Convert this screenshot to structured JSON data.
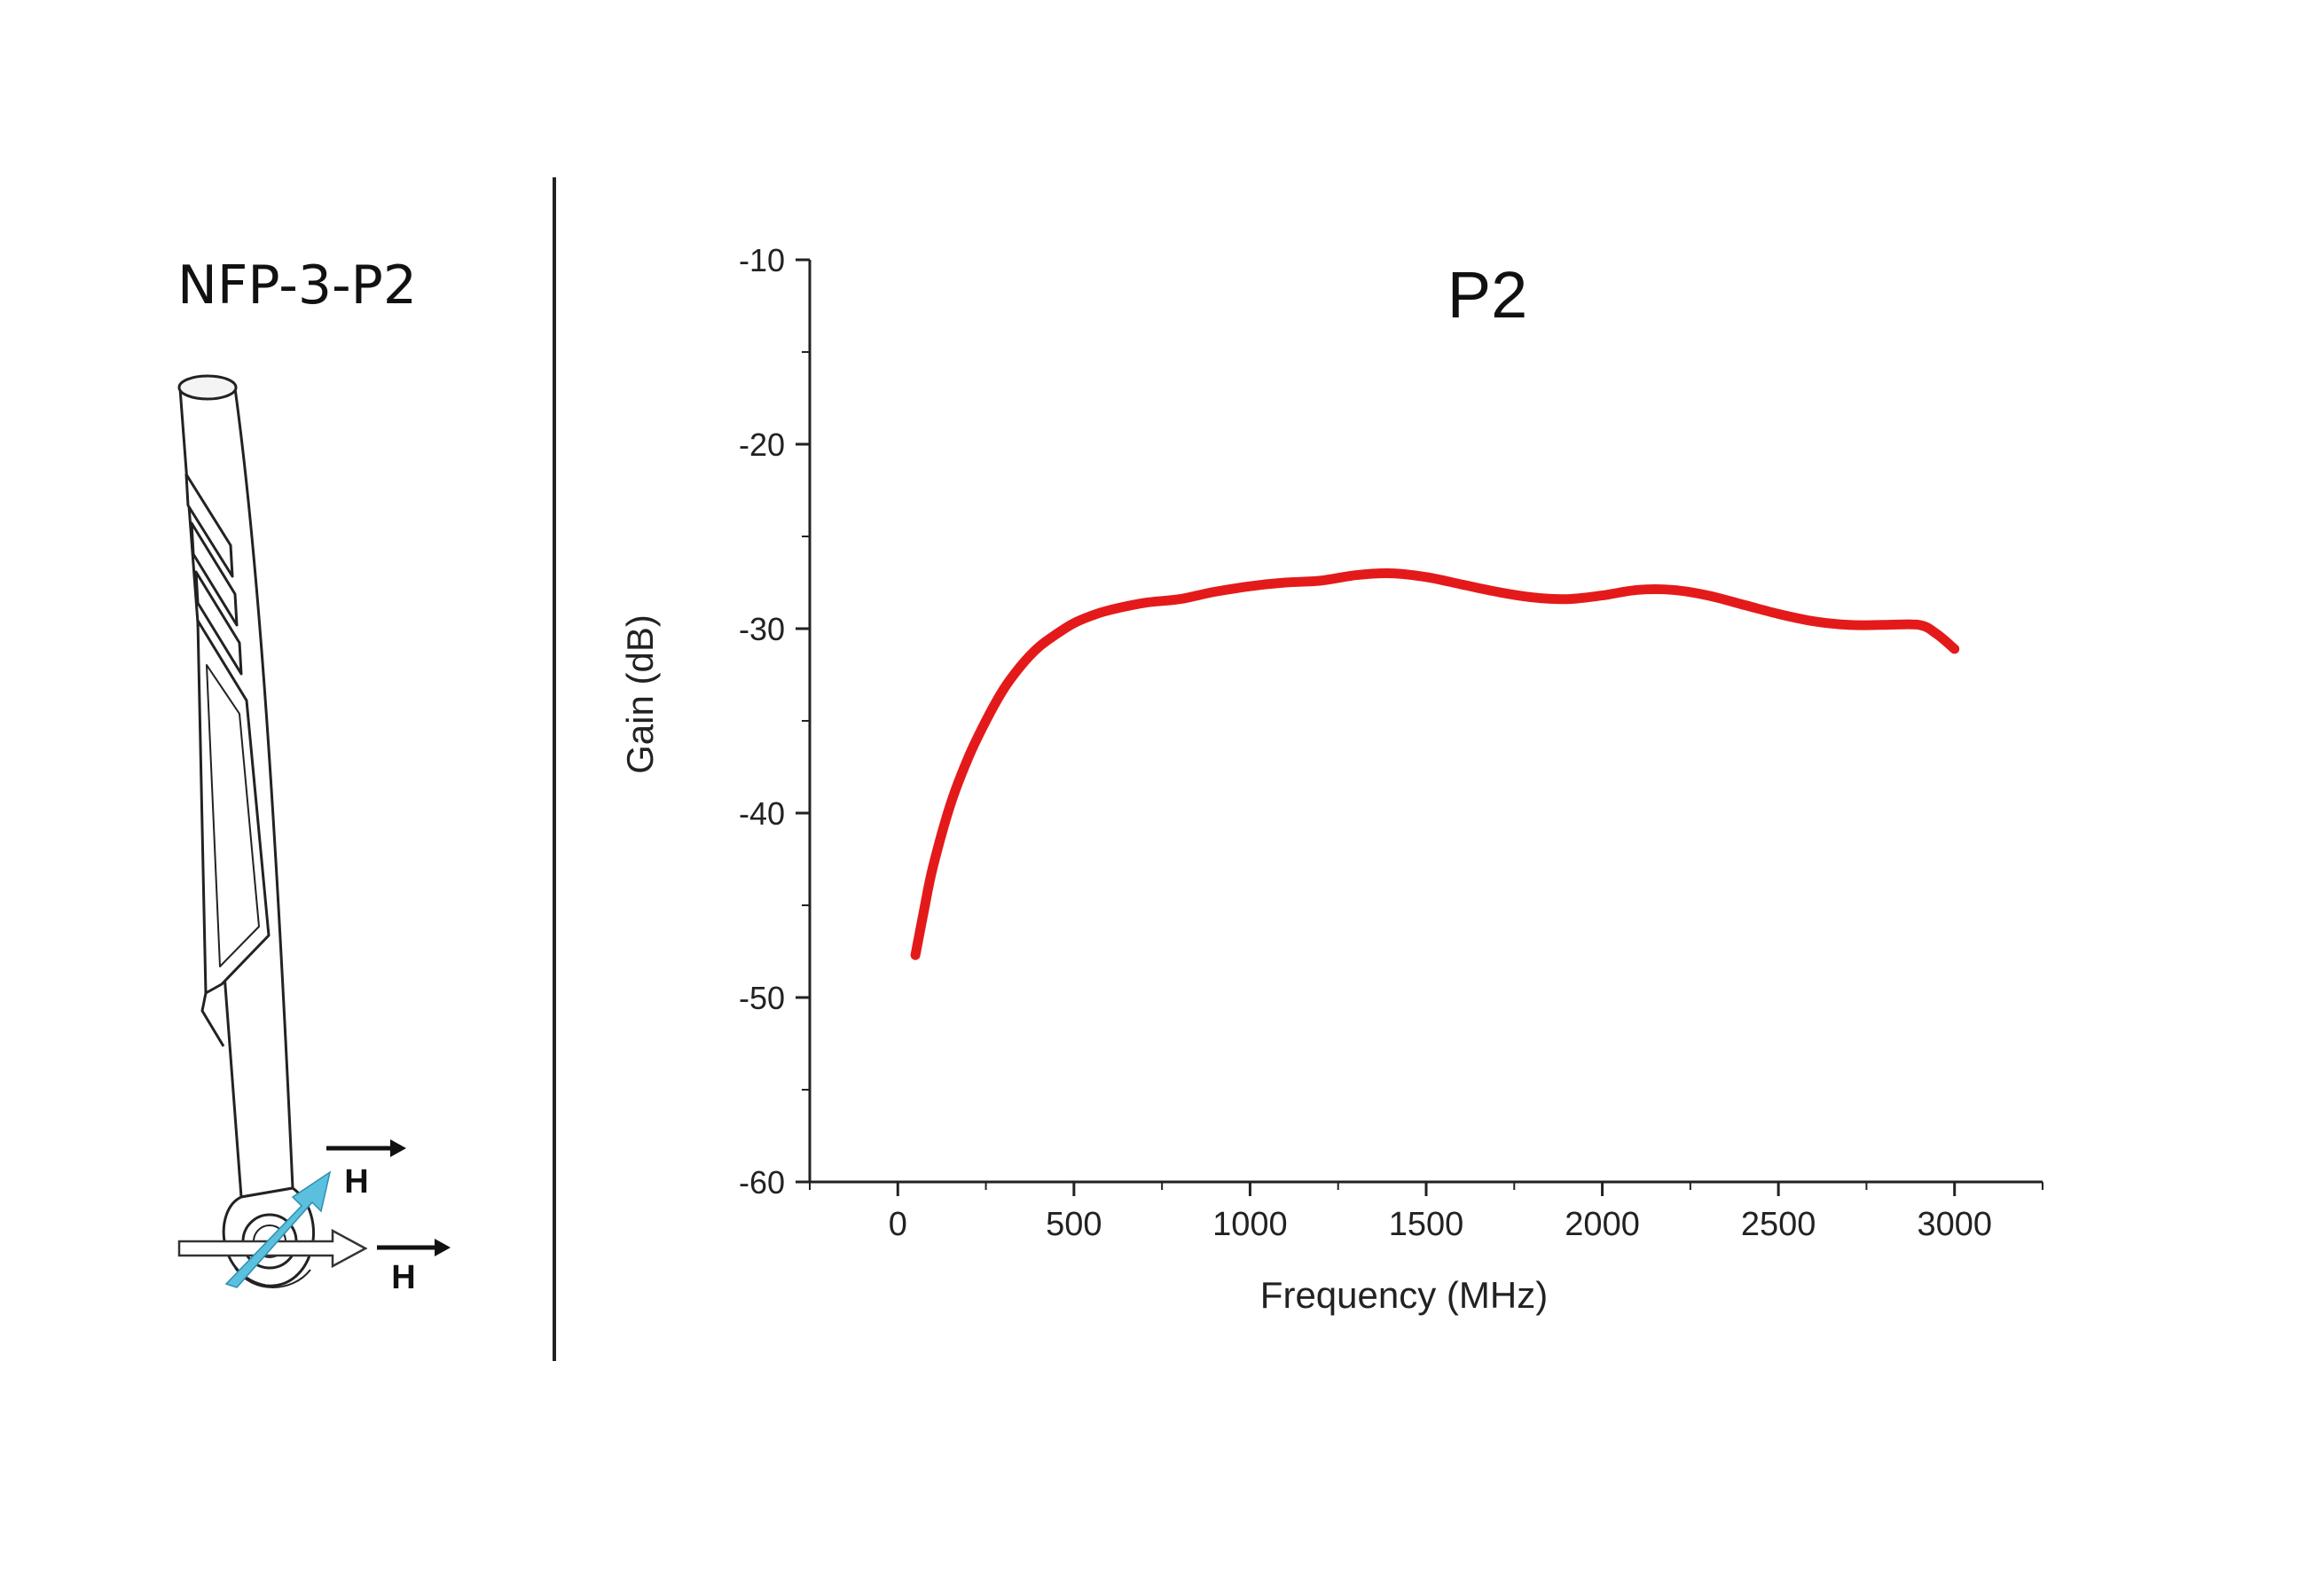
{
  "probe": {
    "label": "NFP-3-P2",
    "field_labels": [
      "H",
      "H"
    ],
    "arrow_color": "#5bc0de",
    "icon": "near-field-probe-drawing"
  },
  "chart_data": {
    "type": "line",
    "title": "P2",
    "xlabel": "Frequency (MHz)",
    "ylabel": "Gain (dB)",
    "xlim": [
      -250,
      3250
    ],
    "ylim": [
      -60,
      -10
    ],
    "xticks": [
      0,
      500,
      1000,
      1500,
      2000,
      2500,
      3000
    ],
    "xtick_labels": [
      "0",
      "500",
      "1000",
      "1500",
      "2000",
      "2500",
      "3000"
    ],
    "yticks": [
      -10,
      -20,
      -30,
      -40,
      -50,
      -60
    ],
    "ytick_labels": [
      "-10",
      "-20",
      "-30",
      "-40",
      "-50",
      "-60"
    ],
    "grid": false,
    "series": [
      {
        "color": "#e41a1a",
        "x": [
          50,
          75,
          100,
          150,
          200,
          250,
          300,
          350,
          400,
          450,
          500,
          550,
          600,
          700,
          800,
          900,
          1000,
          1100,
          1200,
          1300,
          1400,
          1500,
          1600,
          1700,
          1800,
          1900,
          2000,
          2100,
          2200,
          2300,
          2400,
          2500,
          2600,
          2700,
          2800,
          2900,
          2950,
          3000
        ],
        "y": [
          -47.7,
          -45.2,
          -42.9,
          -39.5,
          -37.0,
          -35.0,
          -33.3,
          -32.0,
          -31.0,
          -30.3,
          -29.7,
          -29.3,
          -29.0,
          -28.6,
          -28.4,
          -28.0,
          -27.7,
          -27.5,
          -27.4,
          -27.1,
          -27.0,
          -27.2,
          -27.6,
          -28.0,
          -28.3,
          -28.4,
          -28.2,
          -27.9,
          -27.9,
          -28.2,
          -28.7,
          -29.2,
          -29.6,
          -29.8,
          -29.8,
          -29.8,
          -30.3,
          -31.1
        ]
      }
    ]
  }
}
